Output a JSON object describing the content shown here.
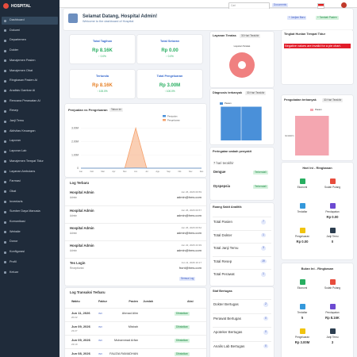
{
  "sidebar": {
    "brand": "HOSPITAL",
    "menu": [
      "Dashboard",
      "Dokumi",
      "Departemen",
      "Dokter",
      "Manajemen Pasien",
      "Manajemen Obat",
      "Ringkasan Pasien AI",
      "Analisis Gambar AI",
      "Rencana Perawatan AI",
      "Resep",
      "Janji Temu",
      "Aktivitas Keuangan",
      "Laporan",
      "Laporan Lab",
      "Manajemen Tempat Tidur",
      "Layanan Ambulans",
      "Farmasi",
      "Obat",
      "Inventaris",
      "Sumber Daya Manusia",
      "Komunikasi",
      "Website",
      "Donor",
      "Konfigurasi",
      "Profil",
      "Keluar"
    ]
  },
  "topbar": {
    "search": "Cari",
    "documents": "Documents"
  },
  "welcome": {
    "title": "Selamat Datang, Hospital Admin!",
    "subtitle": "Welcome to the dashboard of Hospital",
    "buttons": [
      "+ Janjian Baru",
      "+ Tambah Pasien"
    ]
  },
  "stats": [
    {
      "label": "Total Tagihan",
      "value": "Rp 8.16K",
      "change": "↑ 0.0%"
    },
    {
      "label": "Total Setoran",
      "value": "Rp 0.00",
      "change": "↑ 0.0%"
    },
    {
      "label": "Tertunda",
      "value": "Rp 8.16K",
      "change": "↑ 100.0%"
    },
    {
      "label": "Total Pengeluaran",
      "value": "Rp 3.00M",
      "change": "↑ 100.0%"
    }
  ],
  "sales_chart": {
    "title": "Penjualan vs Pengeluaran",
    "period": "Tahun Ini",
    "categories": [
      "Jan",
      "Feb",
      "Mar",
      "Apr",
      "Mei",
      "Jun",
      "Jul",
      "Agu",
      "Sep",
      "Okt",
      "Nov",
      "Des"
    ],
    "series": [
      {
        "name": "Penjualan",
        "color": "#4a90d9",
        "values": [
          0,
          0,
          0,
          0,
          0,
          8160,
          0,
          0,
          0,
          0,
          0,
          0
        ]
      },
      {
        "name": "Pengeluaran",
        "color": "#f5a06a",
        "values": [
          0,
          0,
          0,
          0,
          0,
          3000000,
          0,
          0,
          0,
          0,
          0,
          0
        ]
      }
    ],
    "ylim": [
      0,
      3500000
    ],
    "yticks": [
      {
        "value": 0,
        "label": "0"
      },
      {
        "value": 1000000,
        "label": "1.00M"
      },
      {
        "value": 2000000,
        "label": "2.00M"
      },
      {
        "value": 3000000,
        "label": "3.00M"
      }
    ]
  },
  "logs": {
    "title": "Log Terbaru",
    "button": "Semua Log",
    "entries": [
      {
        "name": "Hospital Admin",
        "role": "Admin",
        "date": "Jun 26, 2026 09:59",
        "email": "admin@hms.com"
      },
      {
        "name": "Hospital Admin",
        "role": "Admin",
        "date": "Jun 26, 2026 09:57",
        "email": "admin@hms.com"
      },
      {
        "name": "Hospital Admin",
        "role": "Admin",
        "date": "Jun 26, 2026 09:52",
        "email": "admin@hms.com"
      },
      {
        "name": "Hospital Admin",
        "role": "Admin",
        "date": "Jun 22, 2026 23:39",
        "email": "admin@hms.com"
      },
      {
        "name": "Tes Login",
        "role": "Receptionist",
        "date": "Jun 11, 2026 16:17",
        "email": "front@hms.com"
      }
    ]
  },
  "transactions": {
    "title": "Log Transaksi Terbaru",
    "columns": [
      "Waktu",
      "Faktur",
      "Pasien",
      "Jumlah",
      "Aksi"
    ],
    "rows": [
      {
        "date": "Jun 11, 2026",
        "time": "20:22",
        "invoice": "INV",
        "patient": "Ahmad Alim",
        "status": "Dibatalkan"
      },
      {
        "date": "Jun 09, 2026",
        "time": "23:27",
        "invoice": "INV",
        "patient": "Misbah",
        "status": "Dibatalkan"
      },
      {
        "date": "Jun 09, 2026",
        "time": "23:19",
        "invoice": "INV",
        "patient": "Muhammad Arfan",
        "status": "Dibatalkan"
      },
      {
        "date": "Jun 08, 2026",
        "time": "22:10",
        "invoice": "INV",
        "patient": "FAUZIA RAMADHAN",
        "status": "Dibatalkan"
      }
    ]
  },
  "top_services": {
    "title": "Layanan Teratas",
    "period": "30 Hari Terakhir",
    "chart_label": "Layanan Teratas",
    "values": [
      1
    ],
    "color": "#f08080"
  },
  "top_diagnosis": {
    "title": "Diagnosis terbanyak",
    "period": "30 Hari Terakhir",
    "legend": "Pasien",
    "values": [
      1,
      1
    ],
    "ylim": [
      0,
      1.2
    ],
    "color": "#4a90d9"
  },
  "outbreak": {
    "title": "Peringatan wabah penyakit",
    "period": "7 hari terakhir",
    "items": [
      {
        "name": "Dengue",
        "status": "Terkendali"
      },
      {
        "name": "Dyspepsia",
        "status": "Terkendali"
      }
    ]
  },
  "analytics": {
    "title": "Ruang Sakit Analitik",
    "items": [
      {
        "label": "Total Pasien",
        "value": 7
      },
      {
        "label": "Total Dokter",
        "value": 1
      },
      {
        "label": "Total Janji Temu",
        "value": 3
      },
      {
        "label": "Total Resep",
        "value": 19
      },
      {
        "label": "Total Perawat",
        "value": 1
      }
    ]
  },
  "staff": {
    "title": "Staf Bertugas",
    "items": [
      {
        "label": "Dokter Bertugas",
        "value": 2
      },
      {
        "label": "Perawat Bertugas",
        "value": 0
      },
      {
        "label": "Apoteker Bertugas",
        "value": 0
      },
      {
        "label": "Analis Lab Bertugas",
        "value": 0
      }
    ]
  },
  "bed_occupancy": {
    "title": "Tingkat Hunian Tempat Tidur",
    "error": "Negative values are invalid for a pie chart."
  },
  "top_medicine": {
    "title": "Pengobatan terbanyak",
    "period": "30 Hari Terakhir",
    "legend": "Pasien",
    "categories": [
      "Endokrin"
    ],
    "values": [
      1
    ],
    "xlim": [
      0,
      1.6
    ],
    "color": "#f4a6b0"
  },
  "today": {
    "title": "Hari Ini - Ringkasan",
    "items": [
      {
        "label": "Ekonomi"
      },
      {
        "label": "Sudah Pulang"
      },
      {
        "label": "Terdaftar"
      },
      {
        "label": "Pendapatan",
        "value": "Rp 0.00"
      },
      {
        "label": "Pengeluaran",
        "value": "Rp 0.00"
      },
      {
        "label": "Janji Temu",
        "value": "0"
      }
    ]
  },
  "month": {
    "title": "Bulan Ini - Ringkasan",
    "items": [
      {
        "label": "Ekonomi"
      },
      {
        "label": "Sudah Pulang"
      },
      {
        "label": "Terdaftar",
        "value": "5"
      },
      {
        "label": "Pendapatan",
        "value": "Rp 8.16K"
      },
      {
        "label": "Pengeluaran",
        "value": "Rp 3.00M"
      },
      {
        "label": "Janji Temu",
        "value": "3"
      }
    ]
  }
}
